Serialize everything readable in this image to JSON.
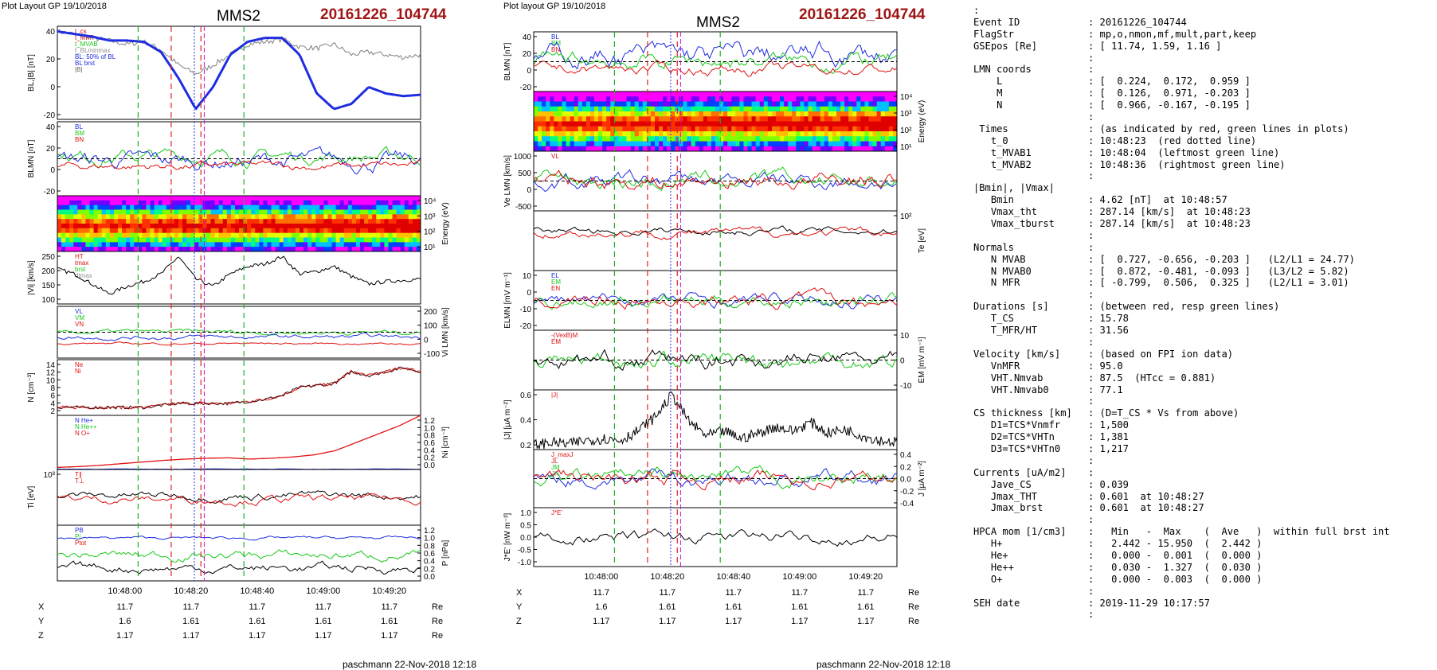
{
  "left": {
    "header": "Plot Layout GP 19/10/2018",
    "spacecraft": "MMS2",
    "event": "20161226_104744",
    "footer": "paschmann 22-Nov-2018 12:18",
    "time_ticks": [
      "10:48:00",
      "10:48:20",
      "10:48:40",
      "10:49:00",
      "10:49:20"
    ],
    "ephem": [
      {
        "name": "X",
        "values": [
          "11.7",
          "11.7",
          "11.7",
          "11.7",
          "11.7"
        ],
        "unit": "Re"
      },
      {
        "name": "Y",
        "values": [
          "1.6",
          "1.61",
          "1.61",
          "1.61",
          "1.61"
        ],
        "unit": "Re"
      },
      {
        "name": "Z",
        "values": [
          "1.17",
          "1.17",
          "1.17",
          "1.17",
          "1.17"
        ],
        "unit": "Re"
      }
    ],
    "panels": [
      {
        "ylabel": "BL,|B| [nT]",
        "ticks": [
          "40",
          "20",
          "0",
          "-20"
        ],
        "legend": [
          "t_cs",
          "t_MFR",
          "t_MVAB",
          "t_BLminmax",
          "BL: 50% of BL",
          "BL brst",
          "|B|"
        ]
      },
      {
        "ylabel": "BLMN [nT]",
        "ticks": [
          "40",
          "20",
          "0",
          "-20"
        ],
        "legend": [
          "BL",
          "BM",
          "BN"
        ]
      },
      {
        "ylabel": "Energy (eV)",
        "ticks": [
          "10⁴",
          "10³",
          "10²",
          "10¹"
        ],
        "legend": []
      },
      {
        "ylabel": "|Vi| [km/s]",
        "ticks": [
          "250",
          "200",
          "150",
          "100"
        ],
        "legend": [
          "HT",
          "tmax",
          "brst",
          "dtmax"
        ]
      },
      {
        "ylabel": "Vi LMN [km/s]",
        "ticks": [
          "200",
          "100",
          "0",
          "-100"
        ],
        "legend": [
          "VL",
          "VM",
          "VN"
        ]
      },
      {
        "ylabel": "N [cm⁻³]",
        "ticks": [
          "14",
          "12",
          "10",
          "8",
          "6",
          "4",
          "2"
        ],
        "legend": [
          "Ne",
          "Ni"
        ]
      },
      {
        "ylabel": "Ni [cm⁻³]",
        "ticks": [
          "1.2",
          "1.0",
          "0.8",
          "0.6",
          "0.4",
          "0.2",
          "0.0"
        ],
        "legend": [
          "N He+",
          "N He++",
          "N O+"
        ]
      },
      {
        "ylabel": "Ti [eV]",
        "ticks": [
          "10³"
        ],
        "legend": [
          "T∥",
          "T⊥"
        ]
      },
      {
        "ylabel": "P [nPa]",
        "ticks": [
          "1.2",
          "1.0",
          "0.8",
          "0.6",
          "0.4",
          "0.2",
          "0.0"
        ],
        "legend": [
          "PB",
          "Pi",
          "Ptot"
        ]
      }
    ]
  },
  "middle": {
    "header": "Plot layout GP 19/10/2018",
    "spacecraft": "MMS2",
    "event": "20161226_104744",
    "footer": "paschmann 22-Nov-2018 12:18",
    "time_ticks": [
      "10:48:00",
      "10:48:20",
      "10:48:40",
      "10:49:00",
      "10:49:20"
    ],
    "ephem": [
      {
        "name": "X",
        "values": [
          "11.7",
          "11.7",
          "11.7",
          "11.7",
          "11.7"
        ],
        "unit": "Re"
      },
      {
        "name": "Y",
        "values": [
          "1.6",
          "1.61",
          "1.61",
          "1.61",
          "1.61"
        ],
        "unit": "Re"
      },
      {
        "name": "Z",
        "values": [
          "1.17",
          "1.17",
          "1.17",
          "1.17",
          "1.17"
        ],
        "unit": "Re"
      }
    ],
    "panels": [
      {
        "ylabel": "BLMN [nT]",
        "ticks": [
          "40",
          "20",
          "0",
          "-20"
        ],
        "legend": [
          "BL",
          "BM",
          "BN"
        ]
      },
      {
        "ylabel": "Energy (eV)",
        "ticks": [
          "10⁴",
          "10³",
          "10²",
          "10¹"
        ],
        "legend": []
      },
      {
        "ylabel": "Ve LMN [km/s]",
        "ticks": [
          "1000",
          "500",
          "0",
          "-500"
        ],
        "legend": [
          "VL"
        ]
      },
      {
        "ylabel": "Te [eV]",
        "ticks": [
          "10²"
        ],
        "legend": []
      },
      {
        "ylabel": "ELMN [mV m⁻¹]",
        "ticks": [
          "10",
          "0",
          "-10",
          "-20"
        ],
        "legend": [
          "EL",
          "EM",
          "EN"
        ]
      },
      {
        "ylabel": "EM [mV m⁻¹]",
        "ticks": [
          "10",
          "0",
          "-10"
        ],
        "legend": [
          "-(VexB)M",
          "EM"
        ]
      },
      {
        "ylabel": "|J| [μA m⁻²]",
        "ticks": [
          "0.6",
          "0.4",
          "0.2"
        ],
        "legend": [
          "|J|"
        ]
      },
      {
        "ylabel": "J [μA m⁻²]",
        "ticks": [
          "0.4",
          "0.2",
          "0.0",
          "-0.2",
          "-0.4"
        ],
        "legend": [
          "J_maxJ",
          "JL",
          "JM",
          "JN"
        ]
      },
      {
        "ylabel": "J*E' [nW m⁻³]",
        "ticks": [
          "1.0",
          "0.5",
          "0.0",
          "-0.5",
          "-1.0"
        ],
        "legend": [
          "J*E'"
        ]
      }
    ]
  },
  "info": [
    {
      "k": ":",
      "v": ""
    },
    {
      "k": "Event ID",
      "v": ": 20161226_104744"
    },
    {
      "k": "FlagStr",
      "v": ": mp,o,nmon,mf,mult,part,keep"
    },
    {
      "k": "GSEpos [Re]",
      "v": ": [ 11.74, 1.59, 1.16 ]"
    },
    {
      "k": "",
      "v": ":"
    },
    {
      "k": "LMN coords",
      "v": ":"
    },
    {
      "k": "    L",
      "v": ": [  0.224,  0.172,  0.959 ]"
    },
    {
      "k": "    M",
      "v": ": [  0.126,  0.971, -0.203 ]"
    },
    {
      "k": "    N",
      "v": ": [  0.966, -0.167, -0.195 ]"
    },
    {
      "k": "",
      "v": ":"
    },
    {
      "k": " Times",
      "v": ": (as indicated by red, green lines in plots)"
    },
    {
      "k": "   t_0",
      "v": ": 10:48:23  (red dotted line)"
    },
    {
      "k": "   t_MVAB1",
      "v": ": 10:48:04  (leftmost green line)"
    },
    {
      "k": "   t_MVAB2",
      "v": ": 10:48:36  (rightmost green line)"
    },
    {
      "k": "",
      "v": ":"
    },
    {
      "k": "|Bmin|, |Vmax|",
      "v": ""
    },
    {
      "k": "   Bmin",
      "v": ": 4.62 [nT]  at 10:48:57"
    },
    {
      "k": "   Vmax_tht",
      "v": ": 287.14 [km/s]  at 10:48:23"
    },
    {
      "k": "   Vmax_tburst",
      "v": ": 287.14 [km/s]  at 10:48:23"
    },
    {
      "k": "",
      "v": ":"
    },
    {
      "k": "Normals",
      "v": ":"
    },
    {
      "k": "   N MVAB",
      "v": ": [  0.727, -0.656, -0.203 ]   (L2/L1 = 24.77)"
    },
    {
      "k": "   N MVAB0",
      "v": ": [  0.872, -0.481, -0.093 ]   (L3/L2 = 5.82)"
    },
    {
      "k": "   N MFR",
      "v": ": [ -0.799,  0.506,  0.325 ]   (L2/L1 = 3.01)"
    },
    {
      "k": "",
      "v": ":"
    },
    {
      "k": "Durations [s]",
      "v": ": (between red, resp green lines)"
    },
    {
      "k": "   T_CS",
      "v": ": 15.78"
    },
    {
      "k": "   T_MFR/HT",
      "v": ": 31.56"
    },
    {
      "k": "",
      "v": ":"
    },
    {
      "k": "Velocity [km/s]",
      "v": ": (based on FPI ion data)"
    },
    {
      "k": "   VnMFR",
      "v": ": 95.0"
    },
    {
      "k": "   VHT.Nmvab",
      "v": ": 87.5  (HTcc = 0.881)"
    },
    {
      "k": "   VHT.Nmvab0",
      "v": ": 77.1"
    },
    {
      "k": "",
      "v": ":"
    },
    {
      "k": "CS thickness [km]",
      "v": ": (D=T_CS * Vs from above)"
    },
    {
      "k": "   D1=TCS*Vnmfr",
      "v": ": 1,500"
    },
    {
      "k": "   D2=TCS*VHTn",
      "v": ": 1,381"
    },
    {
      "k": "   D3=TCS*VHTn0",
      "v": ": 1,217"
    },
    {
      "k": "",
      "v": ":"
    },
    {
      "k": "Currents [uA/m2]",
      "v": ":"
    },
    {
      "k": "   Jave_CS",
      "v": ": 0.039"
    },
    {
      "k": "   Jmax_THT",
      "v": ": 0.601  at 10:48:27"
    },
    {
      "k": "   Jmax_brst",
      "v": ": 0.601  at 10:48:27"
    },
    {
      "k": "",
      "v": ":"
    },
    {
      "k": "HPCA mom [1/cm3]",
      "v": ":   Min   -  Max    (  Ave   )  within full brst int"
    },
    {
      "k": "   H+",
      "v": ":   2.442 - 15.950  (  2.442 )"
    },
    {
      "k": "   He+",
      "v": ":   0.000 -  0.001  (  0.000 )"
    },
    {
      "k": "   He++",
      "v": ":   0.030 -  1.327  (  0.030 )"
    },
    {
      "k": "   O+",
      "v": ":   0.000 -  0.003  (  0.000 )"
    },
    {
      "k": "",
      "v": ":"
    },
    {
      "k": "SEH date",
      "v": ": 2019-11-29 10:17:57"
    },
    {
      "k": "",
      "v": ":"
    }
  ],
  "colors": {
    "event": "#a01414",
    "L": "#1f2de0",
    "M": "#18c818",
    "N": "#e01010",
    "trace": "#000000"
  },
  "chart_data": [
    {
      "type": "line",
      "spacecraft": "MMS2",
      "xlabel": "",
      "x_ticks": [
        "10:48:00",
        "10:48:20",
        "10:48:40",
        "10:49:00",
        "10:49:20"
      ],
      "markers": [
        {
          "time": "10:48:04",
          "color": "green"
        },
        {
          "time": "10:48:14",
          "color": "red"
        },
        {
          "time": "10:48:23",
          "color": "red"
        },
        {
          "time": "10:48:36",
          "color": "green"
        }
      ],
      "series": [
        {
          "panel": "BL,|B| [nT]",
          "name": "BL brst",
          "ylim": [
            -30,
            42
          ],
          "values": [
            38,
            36,
            34,
            31,
            31,
            30,
            22,
            2,
            -22,
            -5,
            20,
            30,
            33,
            33,
            20,
            -10,
            -22,
            -18,
            -5,
            -10,
            -12,
            -11
          ]
        },
        {
          "panel": "BL,|B| [nT]",
          "name": "|B|",
          "ylim": [
            -30,
            42
          ],
          "values": [
            38,
            36,
            33,
            31,
            28,
            30,
            24,
            12,
            5,
            12,
            20,
            28,
            30,
            32,
            26,
            25,
            28,
            20,
            22,
            20,
            18,
            20
          ]
        },
        {
          "panel": "|Vi| [km/s]",
          "name": "",
          "ylim": [
            80,
            290
          ],
          "values": [
            220,
            200,
            160,
            120,
            150,
            170,
            200,
            270,
            180,
            150,
            200,
            230,
            240,
            270,
            200,
            210,
            230,
            190,
            160,
            170,
            175,
            180
          ]
        },
        {
          "panel": "N [cm⁻³]",
          "name": "Ni",
          "ylim": [
            1,
            15
          ],
          "values": [
            3,
            3,
            3,
            3,
            3,
            3,
            3.5,
            4,
            4,
            4,
            4,
            4.5,
            5,
            6,
            8,
            8.5,
            9,
            12,
            11,
            12,
            13,
            12
          ]
        },
        {
          "panel": "Ni [cm⁻³]",
          "name": "N He++",
          "ylim": [
            0,
            1.3
          ],
          "values": [
            0.05,
            0.07,
            0.1,
            0.14,
            0.18,
            0.22,
            0.25,
            0.27,
            0.28,
            0.25,
            0.27,
            0.3,
            0.35,
            0.45,
            0.65,
            0.85,
            1.05,
            1.3
          ]
        },
        {
          "panel": "|J| [μA m⁻²]",
          "name": "|J|",
          "ylim": [
            0,
            0.65
          ],
          "values": [
            0.05,
            0.08,
            0.06,
            0.1,
            0.12,
            0.1,
            0.2,
            0.35,
            0.6,
            0.3,
            0.15,
            0.2,
            0.12,
            0.18,
            0.25,
            0.2,
            0.3,
            0.18,
            0.22,
            0.15,
            0.1,
            0.08
          ]
        }
      ]
    }
  ]
}
